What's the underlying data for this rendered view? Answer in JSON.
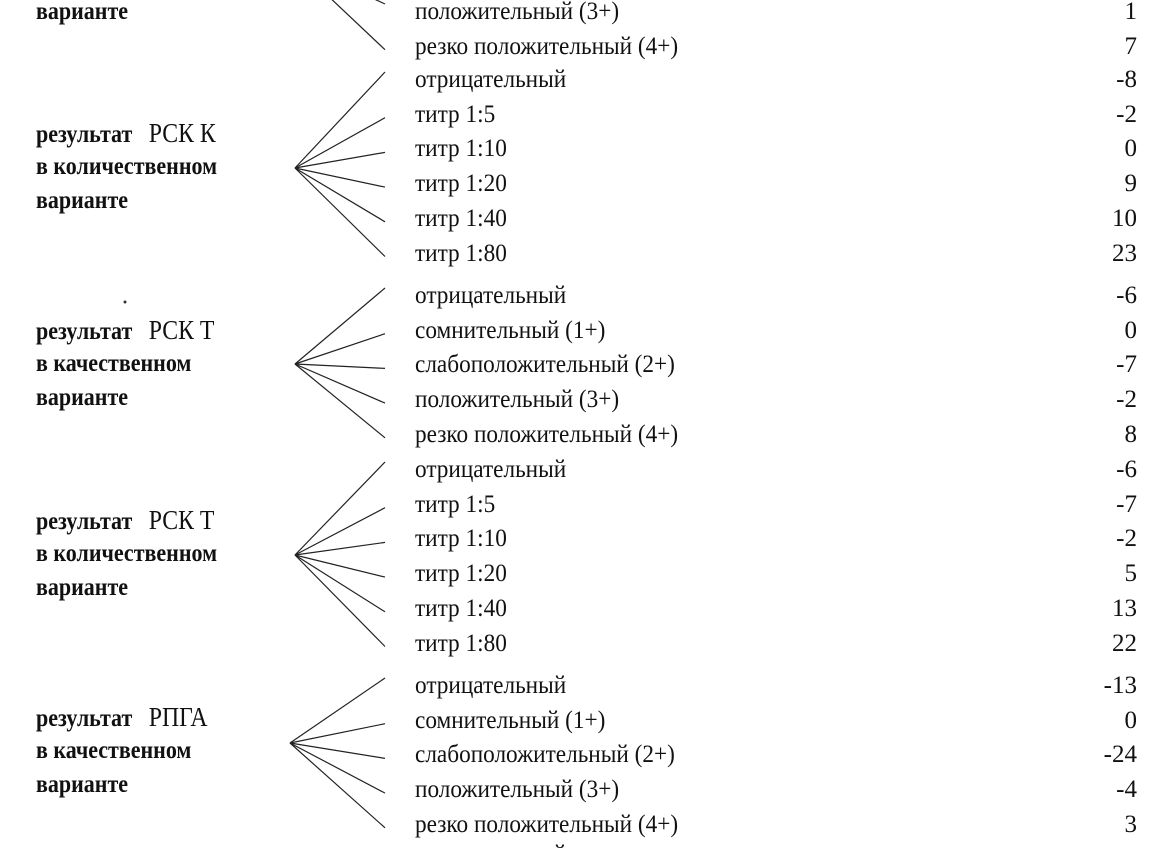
{
  "groups": [
    {
      "label_lines": [
        "",
        "",
        "варианте"
      ],
      "label_abbr": "",
      "items": [
        {
          "text": "положительный (3+)",
          "value": "1"
        },
        {
          "text": "резко положительный (4+)",
          "value": "7"
        }
      ]
    },
    {
      "label_lines": [
        "результат",
        "в количественном",
        "варианте"
      ],
      "label_abbr": "РСК К",
      "items": [
        {
          "text": "отрицательный",
          "value": "-8"
        },
        {
          "text": "титр 1:5",
          "value": "-2"
        },
        {
          "text": "титр 1:10",
          "value": "0"
        },
        {
          "text": "титр 1:20",
          "value": "9"
        },
        {
          "text": "титр 1:40",
          "value": "10"
        },
        {
          "text": "титр 1:80",
          "value": "23"
        }
      ]
    },
    {
      "label_lines": [
        "результат",
        "в качественном",
        "варианте"
      ],
      "label_abbr": "РСК Т",
      "items": [
        {
          "text": "отрицательный",
          "value": "-6"
        },
        {
          "text": "сомнительный (1+)",
          "value": "0"
        },
        {
          "text": "слабоположительный (2+)",
          "value": "-7"
        },
        {
          "text": "положительный (3+)",
          "value": "-2"
        },
        {
          "text": "резко положительный (4+)",
          "value": "8"
        }
      ]
    },
    {
      "label_lines": [
        "результат",
        "в количественном",
        "варианте"
      ],
      "label_abbr": "РСК Т",
      "items": [
        {
          "text": "отрицательный",
          "value": "-6"
        },
        {
          "text": "титр 1:5",
          "value": "-7"
        },
        {
          "text": "титр 1:10",
          "value": "-2"
        },
        {
          "text": "титр 1:20",
          "value": "5"
        },
        {
          "text": "титр 1:40",
          "value": "13"
        },
        {
          "text": "титр 1:80",
          "value": "22"
        }
      ]
    },
    {
      "label_lines": [
        "результат",
        "в качественном",
        "варианте"
      ],
      "label_abbr": "РПГА",
      "items": [
        {
          "text": "отрицательный",
          "value": "-13"
        },
        {
          "text": "сомнительный (1+)",
          "value": "0"
        },
        {
          "text": "слабоположительный (2+)",
          "value": "-24"
        },
        {
          "text": "положительный (3+)",
          "value": "-4"
        },
        {
          "text": "резко положительный (4+)",
          "value": "3"
        }
      ]
    },
    {
      "label_lines": [
        "",
        "",
        ""
      ],
      "label_abbr": "",
      "items": [
        {
          "text": "отрицательный",
          "value": ""
        }
      ]
    }
  ]
}
